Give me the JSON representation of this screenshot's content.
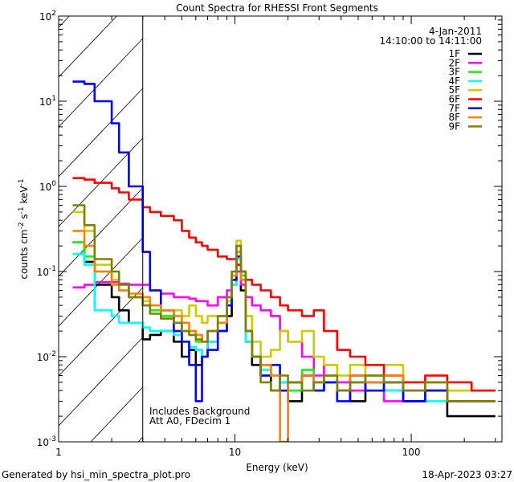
{
  "chart_data": {
    "type": "line",
    "title": "Count Spectra for RHESSI Front Segments",
    "xlabel": "Energy (keV)",
    "ylabel": "counts cm-2 s-1 keV-1",
    "xscale": "log",
    "yscale": "log",
    "xlim": [
      1,
      327
    ],
    "ylim": [
      0.001,
      100
    ],
    "x_tick_labels": [
      {
        "v": 1,
        "label": "1"
      },
      {
        "v": 10,
        "label": "10"
      },
      {
        "v": 100,
        "label": "100"
      }
    ],
    "y_tick_labels": [
      {
        "v": 100,
        "exp": "2"
      },
      {
        "v": 10,
        "exp": "1"
      },
      {
        "v": 1,
        "exp": "0"
      },
      {
        "v": 0.1,
        "exp": "-1"
      },
      {
        "v": 0.01,
        "exp": "-2"
      },
      {
        "v": 0.001,
        "exp": "-3"
      }
    ],
    "hatched_region_keV": [
      1,
      3
    ],
    "date": "4-Jan-2011",
    "time_range": "14:10:00 to 14:11:00",
    "annotation_1": "Includes Background",
    "annotation_2": "Att A0, FDecim 1",
    "legend_position": "top-right",
    "energy_edges": [
      1.2,
      1.4,
      1.6,
      2.0,
      2.2,
      2.5,
      3.0,
      3.3,
      3.8,
      4.5,
      5.0,
      5.5,
      6.0,
      6.5,
      7.0,
      8.0,
      9.0,
      9.6,
      10.2,
      10.8,
      11.5,
      12.5,
      14,
      16,
      18,
      20,
      24,
      28,
      32,
      38,
      45,
      55,
      70,
      90,
      120,
      160,
      220,
      300
    ],
    "series": [
      {
        "name": "1F",
        "color": "#000000",
        "values": [
          0.22,
          0.13,
          0.07,
          0.05,
          0.035,
          0.025,
          0.016,
          0.018,
          0.02,
          0.015,
          0.01,
          0.012,
          0.008,
          0.01,
          0.015,
          0.02,
          0.03,
          0.07,
          0.12,
          0.06,
          0.015,
          0.008,
          0.006,
          0.004,
          0.005,
          0.003,
          0.006,
          0.004,
          0.005,
          0.004,
          0.003,
          0.005,
          0.004,
          0.003,
          0.004,
          0.002,
          0.002
        ]
      },
      {
        "name": "2F",
        "color": "#ff00ff",
        "values": [
          0.065,
          0.07,
          0.075,
          0.075,
          0.072,
          0.07,
          0.07,
          0.06,
          0.055,
          0.05,
          0.05,
          0.048,
          0.045,
          0.045,
          0.04,
          0.05,
          0.06,
          0.08,
          0.1,
          0.07,
          0.05,
          0.04,
          0.035,
          0.03,
          0.02,
          0.015,
          0.01,
          0.006,
          0.008,
          0.005,
          0.004,
          0.005,
          0.003,
          0.004,
          0.004,
          0.003,
          0.003
        ]
      },
      {
        "name": "3F",
        "color": "#00ff00",
        "values": [
          0.22,
          0.15,
          0.1,
          0.08,
          0.07,
          0.05,
          0.04,
          0.035,
          0.03,
          0.025,
          0.02,
          0.018,
          0.015,
          0.015,
          0.02,
          0.025,
          0.04,
          0.08,
          0.15,
          0.09,
          0.02,
          0.01,
          0.008,
          0.006,
          0.005,
          0.004,
          0.007,
          0.005,
          0.006,
          0.004,
          0.005,
          0.006,
          0.004,
          0.005,
          0.004,
          0.003,
          0.003
        ]
      },
      {
        "name": "4F",
        "color": "#00ffff",
        "values": [
          0.16,
          0.12,
          0.035,
          0.03,
          0.025,
          0.025,
          0.022,
          0.02,
          0.02,
          0.018,
          0.015,
          0.013,
          0.012,
          0.01,
          0.015,
          0.02,
          0.04,
          0.07,
          0.14,
          0.08,
          0.015,
          0.01,
          0.007,
          0.006,
          0.005,
          0.005,
          0.006,
          0.004,
          0.005,
          0.004,
          0.005,
          0.005,
          0.004,
          0.005,
          0.003,
          0.003,
          0.003
        ]
      },
      {
        "name": "5F",
        "color": "#cccc00",
        "values": [
          0.5,
          0.3,
          0.12,
          0.08,
          0.06,
          0.05,
          0.045,
          0.04,
          0.035,
          0.035,
          0.03,
          0.04,
          0.03,
          0.025,
          0.03,
          0.03,
          0.045,
          0.1,
          0.23,
          0.1,
          0.03,
          0.015,
          0.01,
          0.012,
          0.02,
          0.015,
          0.02,
          0.01,
          0.008,
          0.006,
          0.008,
          0.006,
          0.008,
          0.005,
          0.006,
          0.004,
          0.004
        ]
      },
      {
        "name": "6F",
        "color": "#ff0000",
        "values": [
          1.25,
          1.2,
          1.1,
          0.95,
          0.85,
          0.7,
          0.57,
          0.5,
          0.45,
          0.4,
          0.3,
          0.25,
          0.22,
          0.2,
          0.18,
          0.15,
          0.14,
          0.14,
          0.12,
          0.1,
          0.08,
          0.07,
          0.06,
          0.05,
          0.04,
          0.035,
          0.03,
          0.035,
          0.02,
          0.012,
          0.01,
          0.008,
          0.006,
          0.005,
          0.006,
          0.005,
          0.004
        ]
      },
      {
        "name": "7F",
        "color": "#0000ff",
        "values": [
          17,
          16,
          10,
          5.5,
          2.5,
          1.0,
          0.17,
          0.06,
          0.035,
          0.02,
          0.015,
          0.008,
          0.003,
          0.01,
          0.012,
          0.02,
          0.04,
          0.08,
          0.15,
          0.1,
          0.02,
          0.01,
          0.006,
          0.008,
          0.004,
          0.005,
          0.006,
          0.004,
          0.005,
          0.003,
          0.006,
          0.004,
          0.005,
          0.003,
          0.004,
          0.003,
          0.003
        ]
      },
      {
        "name": "8F",
        "color": "#ff8000",
        "values": [
          0.3,
          0.2,
          0.1,
          0.07,
          0.06,
          0.055,
          0.05,
          0.04,
          0.035,
          0.03,
          0.025,
          0.02,
          0.018,
          0.015,
          0.02,
          0.025,
          0.05,
          0.09,
          0.17,
          0.08,
          0.02,
          0.01,
          0.008,
          0.006,
          0.001,
          0.005,
          0.006,
          0.005,
          0.006,
          0.004,
          0.006,
          0.005,
          0.006,
          0.004,
          0.005,
          0.003,
          0.003
        ]
      },
      {
        "name": "9F",
        "color": "#808000",
        "values": [
          0.6,
          0.35,
          0.14,
          0.1,
          0.07,
          0.05,
          0.04,
          0.032,
          0.028,
          0.025,
          0.02,
          0.018,
          0.016,
          0.015,
          0.02,
          0.03,
          0.05,
          0.1,
          0.2,
          0.1,
          0.02,
          0.01,
          0.005,
          0.004,
          0.006,
          0.005,
          0.004,
          0.005,
          0.006,
          0.004,
          0.005,
          0.006,
          0.005,
          0.004,
          0.005,
          0.003,
          0.003
        ]
      }
    ]
  },
  "footer": {
    "generated_by": "Generated by hsi_min_spectra_plot.pro",
    "timestamp": "18-Apr-2023 03:27"
  }
}
